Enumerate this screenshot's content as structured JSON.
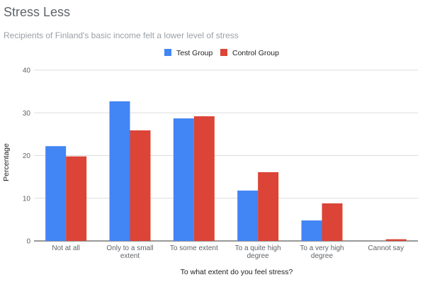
{
  "chart_data": {
    "type": "bar",
    "title": "Stress Less",
    "subtitle": "Recipients of Finland's basic income felt a lower level of stress",
    "xlabel": "To what extent do you feel stress?",
    "ylabel": "Percentage",
    "ylim": [
      0,
      40
    ],
    "yticks": [
      0,
      10,
      20,
      30,
      40
    ],
    "grid": true,
    "legend_position": "top",
    "categories": [
      [
        "Not at all"
      ],
      [
        "Only to a small",
        "extent"
      ],
      [
        "To some extent"
      ],
      [
        "To a quite high",
        "degree"
      ],
      [
        "To a very high",
        "degree"
      ],
      [
        "Cannot say"
      ]
    ],
    "series": [
      {
        "name": "Test Group",
        "color": "#4285f4",
        "values": [
          22.2,
          32.7,
          28.7,
          11.8,
          4.8,
          0.0
        ]
      },
      {
        "name": "Control Group",
        "color": "#db4437",
        "values": [
          19.8,
          25.9,
          29.2,
          16.1,
          8.8,
          0.4
        ]
      }
    ]
  }
}
